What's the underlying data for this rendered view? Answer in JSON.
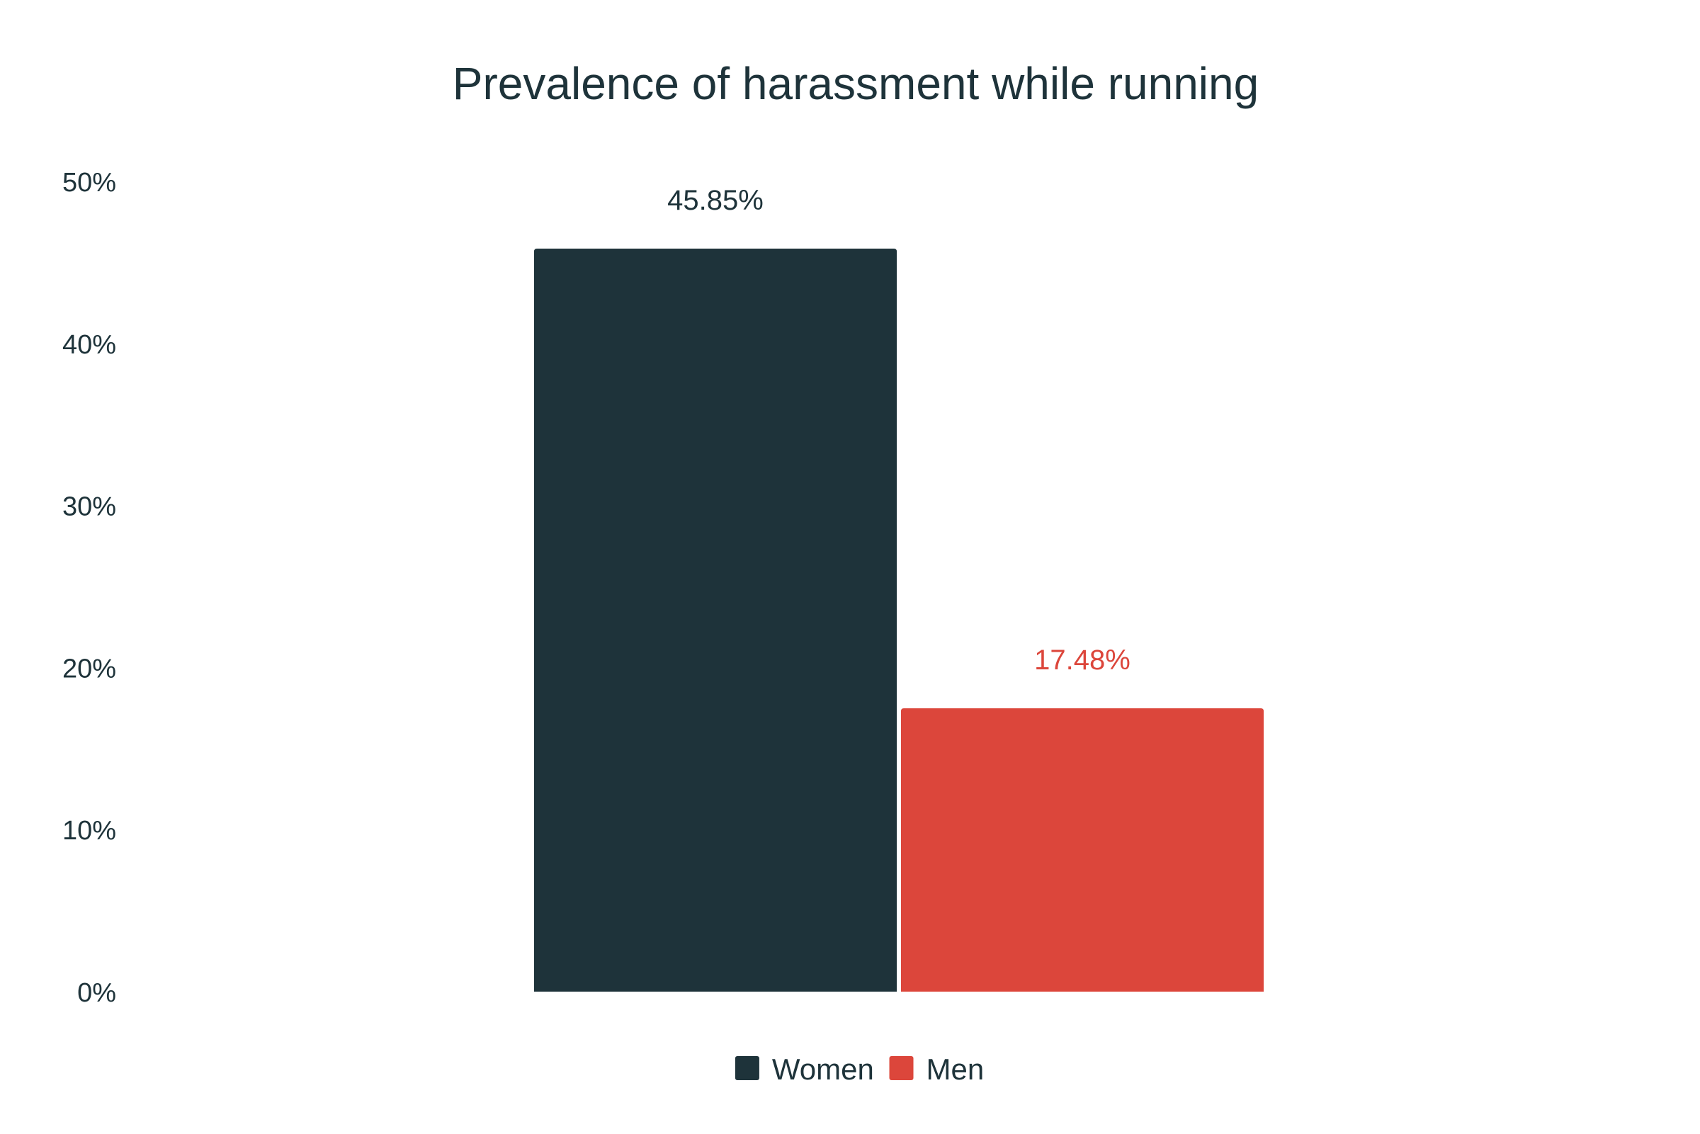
{
  "chart_data": {
    "type": "bar",
    "title": "Prevalence of harassment while running",
    "xlabel": "",
    "ylabel": "",
    "categories": [
      ""
    ],
    "series": [
      {
        "name": "Women",
        "values": [
          45.85
        ],
        "label": "45.85%",
        "color": "#1e333a"
      },
      {
        "name": "Men",
        "values": [
          17.48
        ],
        "label": "17.48%",
        "color": "#dc463b"
      }
    ],
    "ylim": [
      0,
      50
    ],
    "yticks": [
      0,
      10,
      20,
      30,
      40,
      50
    ],
    "ytick_labels": [
      "0%",
      "10%",
      "20%",
      "30%",
      "40%",
      "50%"
    ],
    "grid": false,
    "legend": {
      "position": "bottom-center"
    }
  },
  "colors": {
    "text": "#1e333a",
    "background": "#ffffff"
  }
}
